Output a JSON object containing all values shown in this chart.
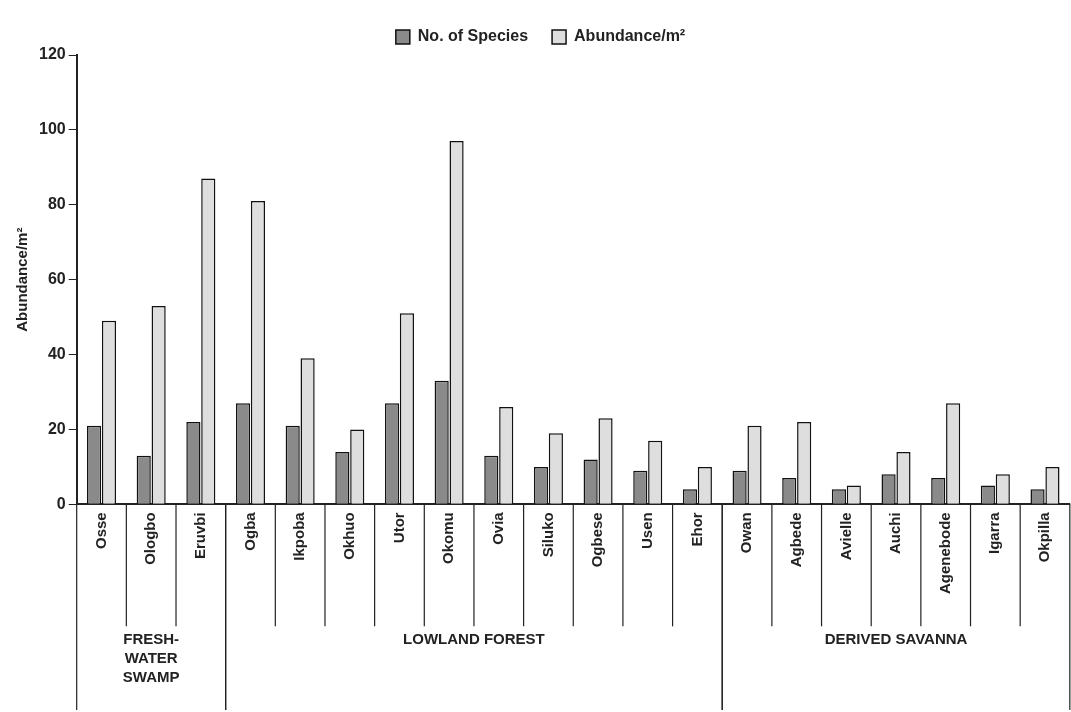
{
  "chart_data": {
    "type": "bar",
    "ylabel": "Abundance/m²",
    "categories": [
      "Osse",
      "Ologbo",
      "Eruvbi",
      "Ogba",
      "Ikpoba",
      "Okhuo",
      "Utor",
      "Okomu",
      "Ovia",
      "Siluko",
      "Ogbese",
      "Usen",
      "Ehor",
      "Owan",
      "Agbede",
      "Avielle",
      "Auchi",
      "Agenebode",
      "Igarra",
      "Okpilla"
    ],
    "series": [
      {
        "name": "No. of Species",
        "color": "#8a8a8a",
        "values": [
          21,
          13,
          22,
          27,
          21,
          14,
          27,
          33,
          13,
          10,
          12,
          9,
          4,
          9,
          7,
          4,
          8,
          7,
          5,
          4
        ]
      },
      {
        "name": "Abundance/m²",
        "color": "#dedede",
        "values": [
          49,
          53,
          87,
          81,
          39,
          20,
          51,
          97,
          26,
          19,
          23,
          17,
          10,
          21,
          22,
          5,
          14,
          27,
          8,
          10
        ]
      }
    ],
    "ylim": [
      0,
      120
    ],
    "yticks": [
      0,
      20,
      40,
      60,
      80,
      100,
      120
    ],
    "grid": false,
    "legend": "top",
    "annotations": [
      "FRESH-WATER SWAMP",
      "LOWLAND FOREST",
      "DERIVED SAVANNA"
    ]
  }
}
